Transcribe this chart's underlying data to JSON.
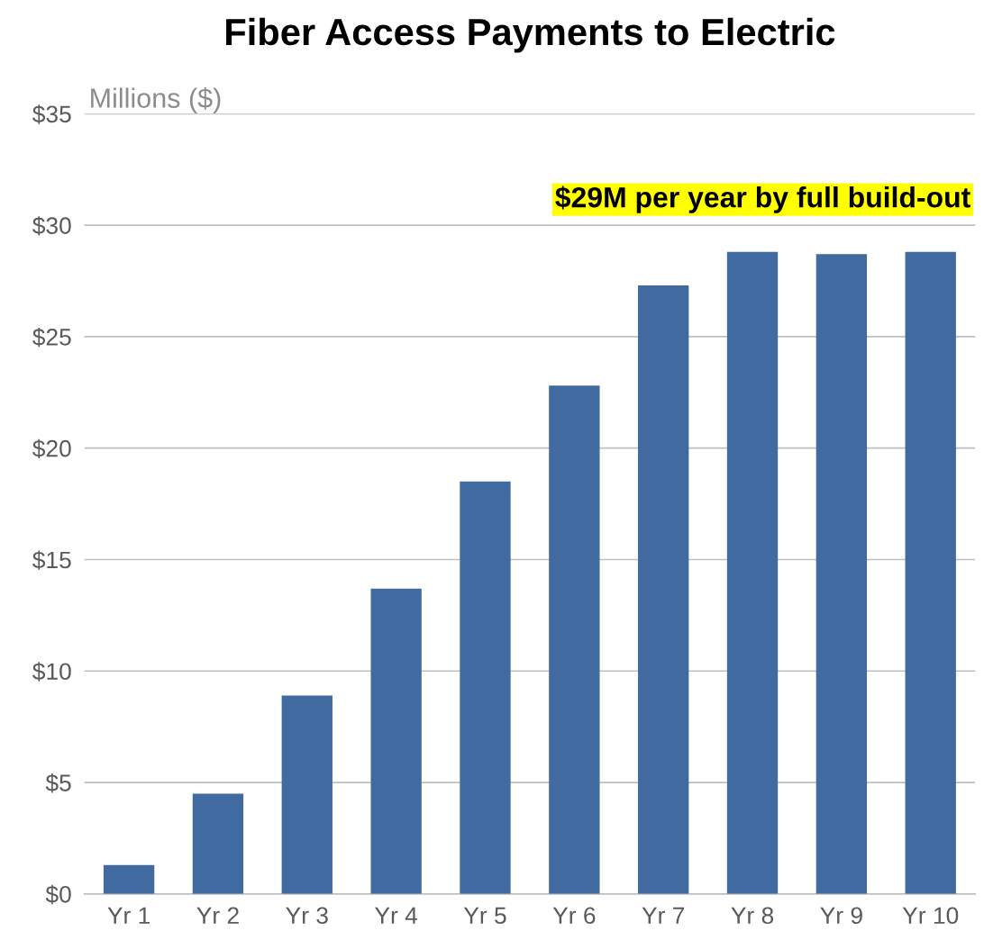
{
  "chart_data": {
    "type": "bar",
    "title": "Fiber Access Payments to Electric",
    "ylabel": "Millions ($)",
    "categories": [
      "Yr 1",
      "Yr 2",
      "Yr 3",
      "Yr 4",
      "Yr 5",
      "Yr 6",
      "Yr 7",
      "Yr 8",
      "Yr 9",
      "Yr 10"
    ],
    "values": [
      1.3,
      4.5,
      8.9,
      13.7,
      18.5,
      22.8,
      27.3,
      28.8,
      28.7,
      28.8
    ],
    "color": "#416ba0",
    "ylim": [
      0,
      35
    ],
    "yticks": [
      {
        "value": 0,
        "label": "$0"
      },
      {
        "value": 5,
        "label": "$5"
      },
      {
        "value": 10,
        "label": "$10"
      },
      {
        "value": 15,
        "label": "$15"
      },
      {
        "value": 20,
        "label": "$20"
      },
      {
        "value": 25,
        "label": "$25"
      },
      {
        "value": 30,
        "label": "$30"
      },
      {
        "value": 35,
        "label": "$35"
      }
    ],
    "grid": "y",
    "annotations": [
      "$29M per year by full build-out"
    ]
  }
}
